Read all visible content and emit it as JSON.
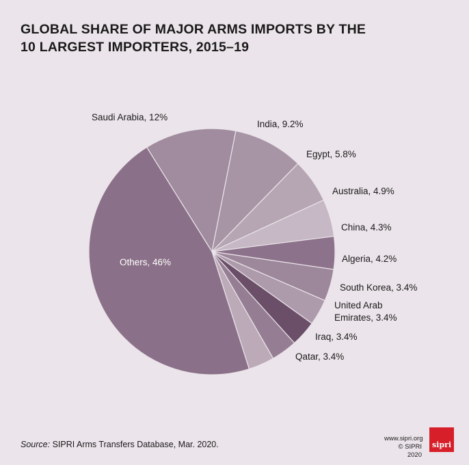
{
  "title_lines": [
    "GLOBAL SHARE OF MAJOR ARMS IMPORTS BY THE",
    "10 LARGEST IMPORTERS, 2015–19"
  ],
  "chart_data": {
    "type": "pie",
    "title": "GLOBAL SHARE OF MAJOR ARMS IMPORTS BY THE 10 LARGEST IMPORTERS, 2015–19",
    "unit": "%",
    "slices": [
      {
        "label": "Saudi Arabia, 12%",
        "value": 12,
        "color": "#a08c9e"
      },
      {
        "label": "India, 9.2%",
        "value": 9.2,
        "color": "#a794a5"
      },
      {
        "label": "Egypt, 5.8%",
        "value": 5.8,
        "color": "#b6a6b3"
      },
      {
        "label": "Australia, 4.9%",
        "value": 4.9,
        "color": "#c6b8c4"
      },
      {
        "label": "China, 4.3%",
        "value": 4.3,
        "color": "#8c728a"
      },
      {
        "label": "Algeria, 4.2%",
        "value": 4.2,
        "color": "#9d879b"
      },
      {
        "label": "South Korea, 3.4%",
        "value": 3.4,
        "color": "#ad9aab"
      },
      {
        "label": [
          "United Arab",
          "Emirates, 3.4%"
        ],
        "value": 3.4,
        "color": "#6b4f69"
      },
      {
        "label": "Iraq, 3.4%",
        "value": 3.4,
        "color": "#957e93"
      },
      {
        "label": "Qatar, 3.4%",
        "value": 3.4,
        "color": "#bcaab9"
      },
      {
        "label": "Others, 46%",
        "value": 46,
        "color": "#8a7088"
      }
    ]
  },
  "source": {
    "prefix": "Source:",
    "text": " SIPRI Arms Transfers Database, Mar. 2020."
  },
  "footer": {
    "url": "www.sipri.org",
    "copyright": "© SIPRI 2020",
    "logo_text": "sipri"
  }
}
